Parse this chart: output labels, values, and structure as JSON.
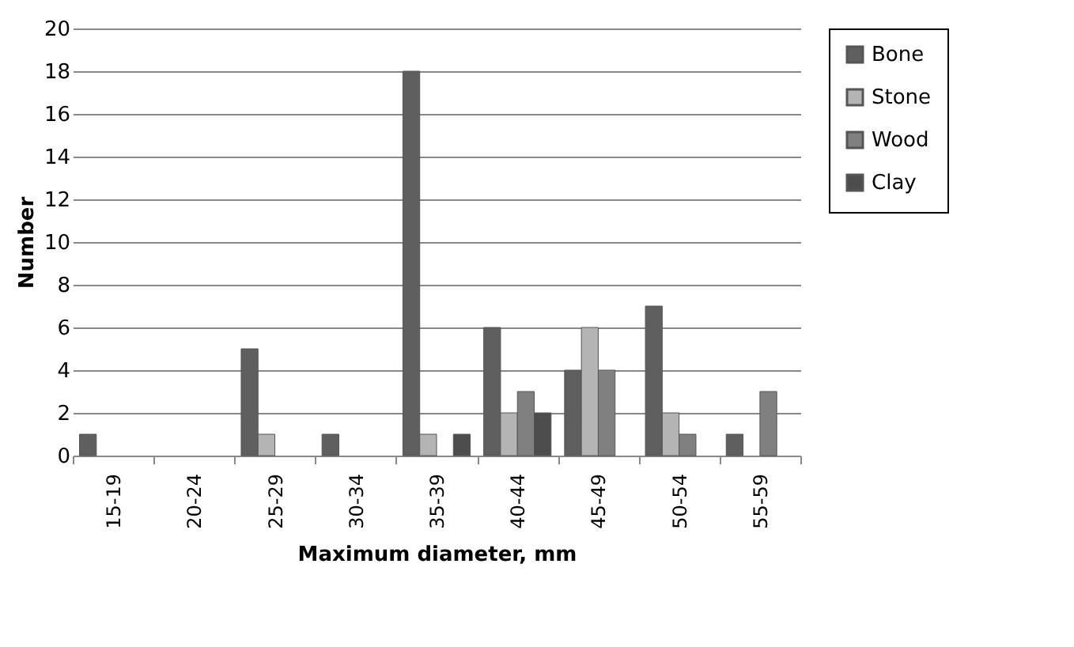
{
  "chart_data": {
    "type": "bar",
    "xlabel": "Maximum diameter, mm",
    "ylabel": "Number",
    "categories": [
      "15-19",
      "20-24",
      "25-29",
      "30-34",
      "35-39",
      "40-44",
      "45-49",
      "50-54",
      "55-59"
    ],
    "series": [
      {
        "name": "Bone",
        "color": "#5f5f5f",
        "values": [
          1,
          null,
          5,
          1,
          18,
          6,
          4,
          7,
          1
        ]
      },
      {
        "name": "Stone",
        "color": "#b4b4b4",
        "values": [
          null,
          null,
          1,
          null,
          1,
          2,
          6,
          2,
          null
        ]
      },
      {
        "name": "Wood",
        "color": "#808080",
        "values": [
          null,
          null,
          null,
          null,
          null,
          3,
          4,
          1,
          3
        ]
      },
      {
        "name": "Clay",
        "color": "#4d4d4d",
        "values": [
          null,
          null,
          null,
          null,
          1,
          2,
          null,
          null,
          null
        ]
      }
    ],
    "ylim": [
      0,
      20
    ],
    "yticks": [
      0,
      2,
      4,
      6,
      8,
      10,
      12,
      14,
      16,
      18,
      20
    ],
    "grid": "y",
    "legend": "right"
  }
}
